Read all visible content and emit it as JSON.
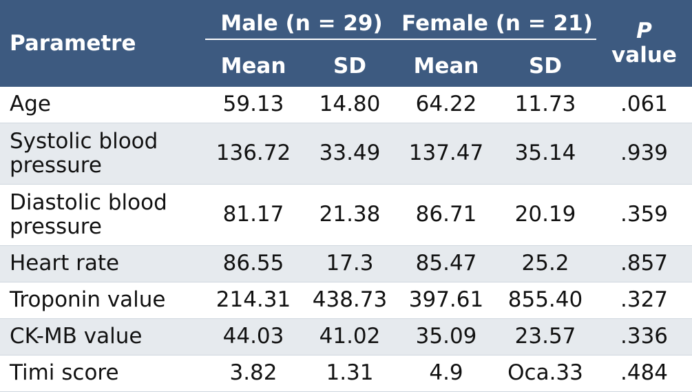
{
  "table": {
    "header": {
      "parameter": "Parametre",
      "male_group": "Male (n = 29)",
      "female_group": "Female (n = 21)",
      "p_italic": "P",
      "p_word": "value",
      "mean": "Mean",
      "sd": "SD"
    },
    "rows": [
      {
        "parameter": "Age",
        "male_mean": "59.13",
        "male_sd": "14.80",
        "female_mean": "64.22",
        "female_sd": "11.73",
        "p": ".061"
      },
      {
        "parameter": "Systolic blood pressure",
        "male_mean": "136.72",
        "male_sd": "33.49",
        "female_mean": "137.47",
        "female_sd": "35.14",
        "p": ".939"
      },
      {
        "parameter": "Diastolic blood pressure",
        "male_mean": "81.17",
        "male_sd": "21.38",
        "female_mean": "86.71",
        "female_sd": "20.19",
        "p": ".359"
      },
      {
        "parameter": "Heart rate",
        "male_mean": "86.55",
        "male_sd": "17.3",
        "female_mean": "85.47",
        "female_sd": "25.2",
        "p": ".857"
      },
      {
        "parameter": "Troponin value",
        "male_mean": "214.31",
        "male_sd": "438.73",
        "female_mean": "397.61",
        "female_sd": "855.40",
        "p": ".327"
      },
      {
        "parameter": "CK-MB value",
        "male_mean": "44.03",
        "male_sd": "41.02",
        "female_mean": "35.09",
        "female_sd": "23.57",
        "p": ".336"
      },
      {
        "parameter": "Timi score",
        "male_mean": "3.82",
        "male_sd": "1.31",
        "female_mean": "4.9",
        "female_sd": "Oca.33",
        "p": ".484"
      }
    ]
  },
  "colors": {
    "header_bg": "#3d5a80",
    "stripe_bg": "#e6eaee"
  }
}
